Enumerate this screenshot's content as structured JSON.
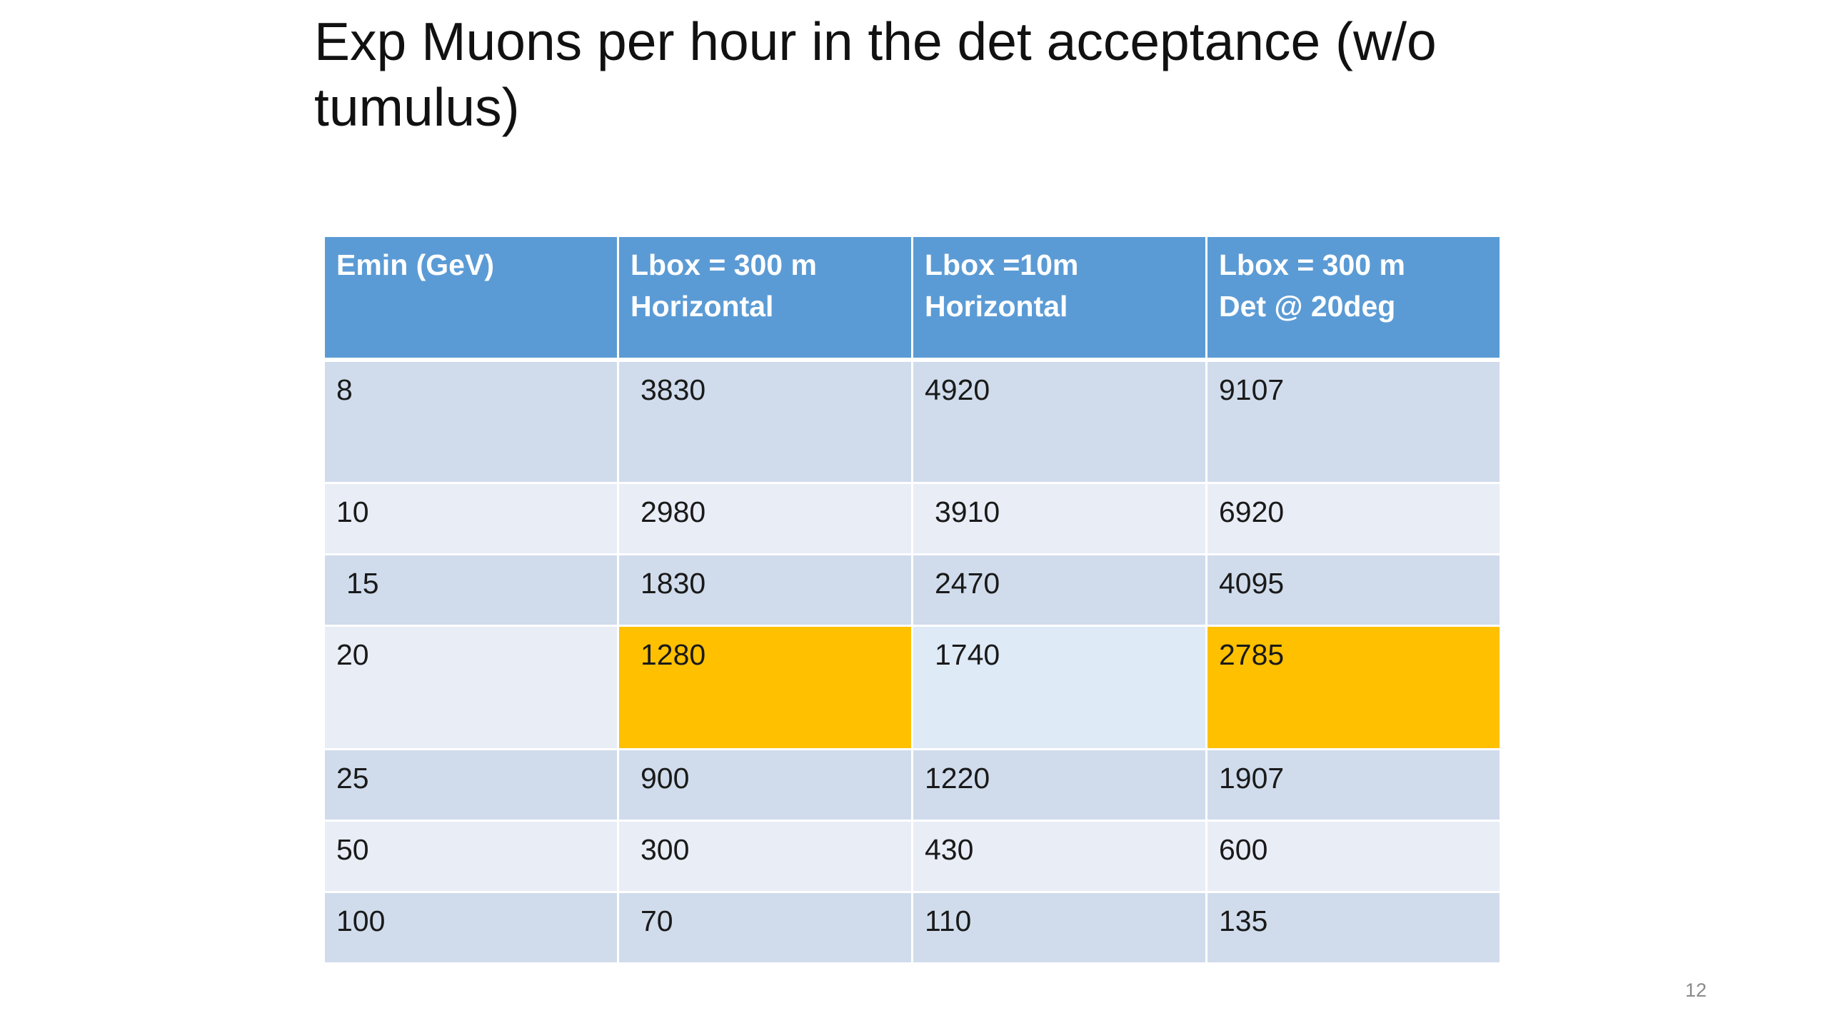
{
  "slide": {
    "title_line1": "Exp Muons per hour in the det acceptance (w/o",
    "title_line2": "tumulus)",
    "page_number": "12"
  },
  "table": {
    "headers": [
      {
        "line1": "Emin (GeV)",
        "line2": ""
      },
      {
        "line1": "Lbox = 300 m",
        "line2": "Horizontal"
      },
      {
        "line1": "Lbox =10m",
        "line2": "Horizontal"
      },
      {
        "line1": "Lbox = 300 m",
        "line2": "Det @ 20deg"
      }
    ],
    "rows": [
      [
        "8",
        "3830",
        "4920",
        "9107"
      ],
      [
        "10",
        "2980",
        "3910",
        "6920"
      ],
      [
        "15",
        "1830",
        "2470",
        "4095"
      ],
      [
        "20",
        "1280",
        "1740",
        "2785"
      ],
      [
        "25",
        "900",
        "1220",
        "1907"
      ],
      [
        "50",
        "300",
        "430",
        "600"
      ],
      [
        "100",
        "70",
        "110",
        "135"
      ]
    ]
  },
  "colors": {
    "header_bg": "#5b9bd5",
    "row_dark": "#d0dcec",
    "row_light": "#e9edf6",
    "highlight": "#ffc000"
  }
}
